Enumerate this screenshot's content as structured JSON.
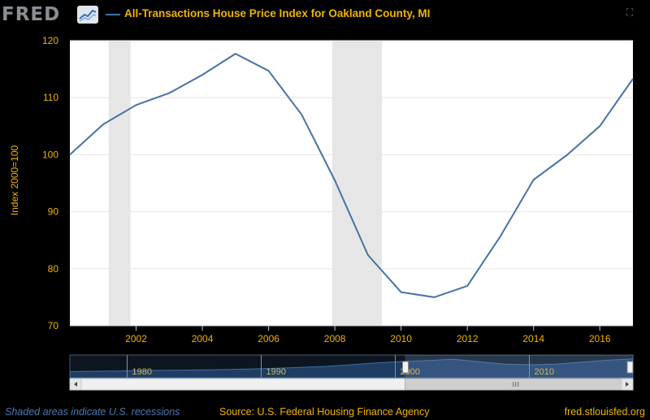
{
  "header": {
    "logo_text": "FRED",
    "title": "All-Transactions House Price Index for Oakland County, MI"
  },
  "footer": {
    "recession_note": "Shaded areas indicate U.S. recessions",
    "source": "Source: U.S. Federal Housing Finance Agency",
    "site": "fred.stlouisfed.org"
  },
  "colors": {
    "line": "#4572a7",
    "text_accent": "#f2b300",
    "recession": "#e6e6e6",
    "plot_bg": "#ffffff"
  },
  "chart_data": {
    "type": "line",
    "title": "All-Transactions House Price Index for Oakland County, MI",
    "ylabel": "Index 2000=100",
    "xlabel": "",
    "xlim": [
      2000,
      2017
    ],
    "ylim": [
      70,
      120
    ],
    "x_ticks": [
      "2002",
      "2004",
      "2006",
      "2008",
      "2010",
      "2012",
      "2014",
      "2016"
    ],
    "y_ticks": [
      "70",
      "80",
      "90",
      "100",
      "110",
      "120"
    ],
    "grid": true,
    "series": [
      {
        "name": "",
        "x": [
          2000,
          2001,
          2002,
          2003,
          2004,
          2005,
          2006,
          2007,
          2008,
          2009,
          2010,
          2011,
          2012,
          2013,
          2014,
          2015,
          2016,
          2017
        ],
        "values": [
          100.0,
          105.3,
          108.7,
          110.8,
          114.0,
          117.7,
          114.7,
          107.0,
          95.5,
          82.4,
          75.9,
          75.0,
          77.0,
          85.7,
          95.6,
          99.9,
          105.0,
          113.3
        ]
      }
    ],
    "recessions": [
      {
        "start": 2001.17,
        "end": 2001.83
      },
      {
        "start": 2007.92,
        "end": 2009.42
      }
    ],
    "navigator": {
      "labels": [
        "1980",
        "1990",
        "2000",
        "2010"
      ],
      "range_start": 1975,
      "range_end": 2017,
      "selected_start": 2000,
      "selected_end": 2017,
      "values": [
        38,
        40,
        42,
        45,
        46,
        48,
        50,
        54,
        58,
        64,
        70,
        80,
        92,
        100,
        106,
        114,
        98,
        84,
        80,
        84,
        96,
        108,
        116
      ]
    }
  }
}
